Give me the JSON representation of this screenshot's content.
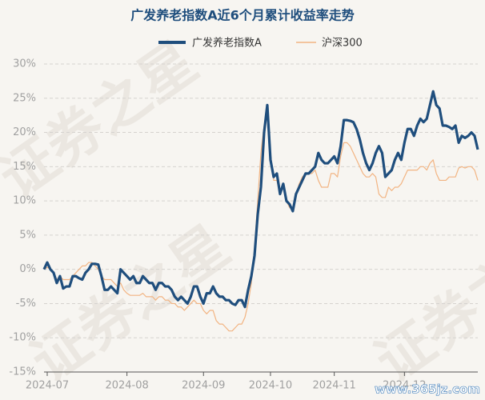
{
  "chart_data": {
    "type": "line",
    "title": "广发养老指数A近6个月累计收益率走势",
    "watermark": "证券之星",
    "site_watermark": "www.365jz.com",
    "categories": [
      null,
      "2024-07",
      null,
      null,
      null,
      null,
      null,
      null,
      null,
      null,
      null,
      null,
      null,
      null,
      null,
      null,
      null,
      null,
      null,
      null,
      null,
      null,
      null,
      null,
      null,
      null,
      "2024-08",
      null,
      null,
      null,
      null,
      null,
      null,
      null,
      null,
      null,
      null,
      null,
      null,
      null,
      null,
      null,
      null,
      null,
      null,
      null,
      null,
      null,
      null,
      null,
      "2024-09",
      null,
      null,
      null,
      null,
      null,
      null,
      null,
      null,
      null,
      null,
      null,
      null,
      null,
      null,
      null,
      null,
      null,
      null,
      null,
      null,
      "2024-10",
      null,
      null,
      null,
      null,
      null,
      null,
      null,
      null,
      null,
      null,
      null,
      null,
      null,
      null,
      null,
      null,
      null,
      null,
      null,
      "2024-11",
      null,
      null,
      null,
      null,
      null,
      null,
      null,
      null,
      null,
      null,
      null,
      null,
      null,
      null,
      null,
      null,
      null,
      null,
      null,
      null,
      null,
      "2024-12",
      null,
      null,
      null,
      null,
      null,
      null,
      null,
      null,
      null,
      null,
      null,
      null,
      null,
      null,
      null,
      null,
      null,
      null,
      null,
      null,
      null,
      null,
      null
    ],
    "series": [
      {
        "name": "广发养老指数A",
        "color": "#1f4e7d",
        "width": 3.2,
        "values": [
          0,
          1,
          0,
          -0.5,
          -2,
          -1,
          -2.8,
          -2.5,
          -2.5,
          -1,
          -1,
          -1.3,
          -1.5,
          -0.5,
          0,
          0.8,
          0.8,
          0.7,
          -1,
          -3,
          -3,
          -2.5,
          -3,
          -3.5,
          0,
          -0.5,
          -1,
          -1.5,
          -1,
          -2,
          -2,
          -1,
          -1.5,
          -2,
          -2,
          -3,
          -2,
          -2,
          -2.5,
          -2.5,
          -3,
          -4,
          -4.5,
          -4,
          -4.5,
          -5,
          -4,
          -2.5,
          -2.5,
          -4,
          -5,
          -3.5,
          -3.5,
          -2.5,
          -3.5,
          -4,
          -4,
          -4.5,
          -4.5,
          -5,
          -5.2,
          -4.5,
          -4.5,
          -5.5,
          -3,
          -1,
          2,
          8,
          12,
          20,
          24,
          16,
          13.5,
          14,
          11,
          12.5,
          10,
          9.5,
          8.5,
          11,
          12,
          13,
          14,
          14,
          14.5,
          15,
          17,
          16,
          15.5,
          15.5,
          16,
          16.5,
          15.5,
          18,
          21.8,
          21.8,
          21.7,
          21.5,
          20.5,
          19,
          17,
          15.5,
          14.5,
          15.5,
          17,
          18,
          17,
          13.5,
          14,
          14.5,
          16,
          17,
          16,
          18.5,
          20.5,
          20.5,
          19.5,
          21,
          22,
          21.5,
          22,
          24,
          26,
          24,
          23.5,
          21,
          21,
          20.8,
          20.5,
          21,
          18.5,
          19.5,
          19.2,
          19.5,
          20,
          19.5,
          17.5
        ]
      },
      {
        "name": "沪深300",
        "color": "#f2b482",
        "width": 1.2,
        "values": [
          0,
          0.3,
          0,
          -0.5,
          -1.5,
          -1,
          -1.5,
          -1.5,
          -1.5,
          -1,
          -0.5,
          0,
          0.5,
          0.5,
          1,
          1,
          0.5,
          0,
          -1,
          -1.5,
          -1.5,
          -1.5,
          -2,
          -2.5,
          -2,
          -3,
          -3.5,
          -3.8,
          -3.8,
          -3.8,
          -3.8,
          -3.5,
          -4,
          -4,
          -4,
          -4.5,
          -4,
          -4,
          -4.5,
          -4.5,
          -5,
          -5,
          -5.5,
          -5.5,
          -6,
          -5.5,
          -5,
          -4.5,
          -5,
          -5,
          -6,
          -6.5,
          -6,
          -6,
          -7.5,
          -8,
          -8,
          -8.5,
          -9,
          -9,
          -8.5,
          -8,
          -8,
          -7,
          -5,
          -2,
          3,
          10,
          17,
          21,
          22.5,
          17,
          13,
          13,
          11,
          12,
          10,
          9,
          9,
          11,
          12.5,
          13.5,
          14,
          14,
          14,
          14.5,
          13,
          12,
          12,
          12,
          14,
          14,
          13.5,
          16.5,
          18.5,
          18.5,
          18,
          17,
          16,
          15,
          14,
          13.5,
          13.5,
          14,
          13.5,
          11,
          10.5,
          10.5,
          12,
          11.5,
          12,
          12,
          12.5,
          13.5,
          14.5,
          14.5,
          14.5,
          14.5,
          15,
          15,
          14.5,
          15.5,
          16,
          14,
          13,
          13,
          13,
          13.5,
          13.5,
          13.5,
          14.8,
          15,
          14.8,
          15,
          15,
          14.5,
          13
        ]
      }
    ],
    "ylim": [
      -15,
      30
    ],
    "yticks": [
      {
        "value": -15,
        "label": "-15%"
      },
      {
        "value": -10,
        "label": "-10%"
      },
      {
        "value": -5,
        "label": "-5%"
      },
      {
        "value": 0,
        "label": "0%"
      },
      {
        "value": 5,
        "label": "5%"
      },
      {
        "value": 10,
        "label": "10%"
      },
      {
        "value": 15,
        "label": "15%"
      },
      {
        "value": 20,
        "label": "20%"
      },
      {
        "value": 25,
        "label": "25%"
      },
      {
        "value": 30,
        "label": "30%"
      }
    ],
    "grid": true
  }
}
